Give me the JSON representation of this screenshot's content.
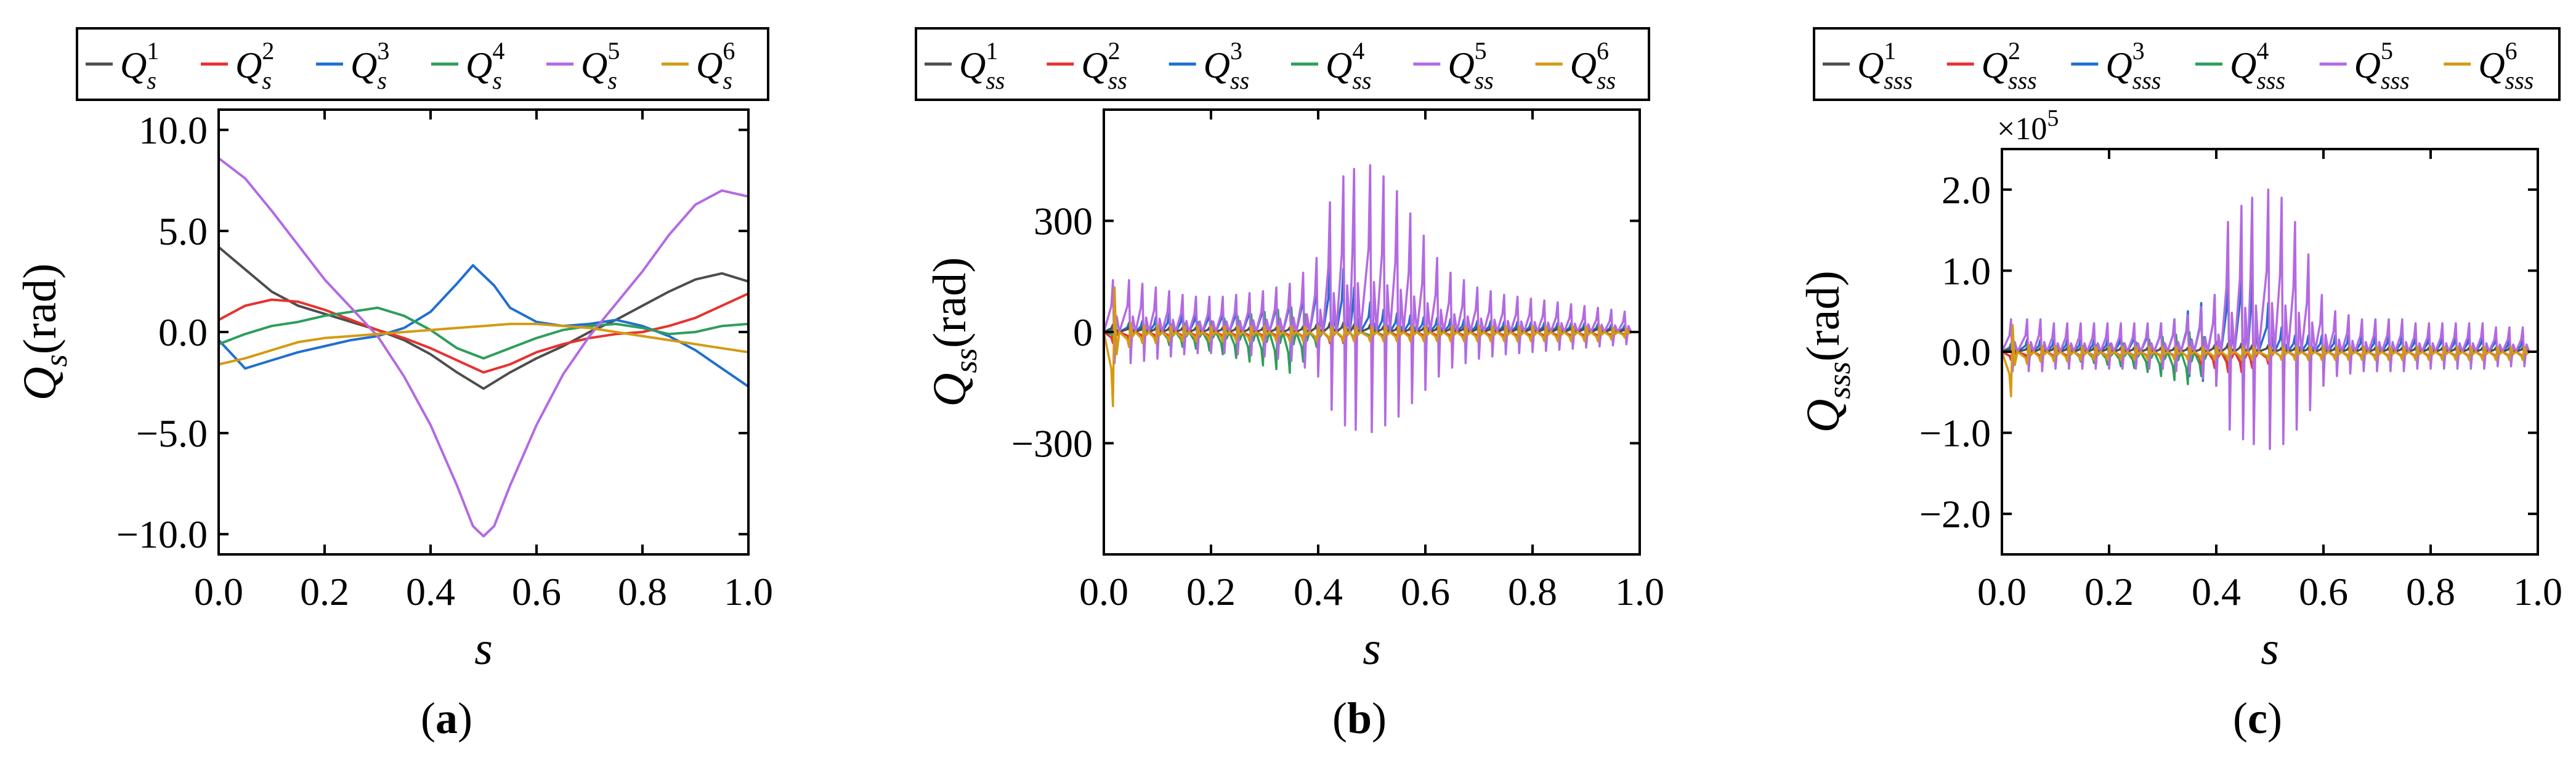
{
  "figure": {
    "series_colors": [
      "#4d4d4d",
      "#e8312f",
      "#1f6fd1",
      "#2e9e5b",
      "#b36ae2",
      "#d49a12"
    ]
  },
  "chart_data": [
    {
      "type": "line",
      "panel_label": "(a)",
      "panel_letter": "a",
      "xlabel": "s",
      "ylabel_main": "Q",
      "ylabel_sub": "s",
      "ylabel_unit": "(rad)",
      "xlim": [
        0.0,
        1.0
      ],
      "ylim": [
        -11.0,
        11.0
      ],
      "xticks": [
        0.0,
        0.2,
        0.4,
        0.6,
        0.8,
        1.0
      ],
      "xtick_labels": [
        "0.0",
        "0.2",
        "0.4",
        "0.6",
        "0.8",
        "1.0"
      ],
      "yticks": [
        -10.0,
        -5.0,
        0.0,
        5.0,
        10.0
      ],
      "ytick_labels": [
        "−10.0",
        "−5.0",
        "0.0",
        "5.0",
        "10.0"
      ],
      "legend": [
        {
          "base": "Q",
          "sub": "s",
          "sup": "1"
        },
        {
          "base": "Q",
          "sub": "s",
          "sup": "2"
        },
        {
          "base": "Q",
          "sub": "s",
          "sup": "3"
        },
        {
          "base": "Q",
          "sub": "s",
          "sup": "4"
        },
        {
          "base": "Q",
          "sub": "s",
          "sup": "5"
        },
        {
          "base": "Q",
          "sub": "s",
          "sup": "6"
        }
      ],
      "legend_position": "top",
      "series": [
        {
          "name": "Q_s^1",
          "x": [
            0,
            0.05,
            0.1,
            0.15,
            0.2,
            0.25,
            0.3,
            0.35,
            0.4,
            0.45,
            0.5,
            0.55,
            0.6,
            0.65,
            0.7,
            0.75,
            0.8,
            0.85,
            0.9,
            0.95,
            1.0
          ],
          "y": [
            4.2,
            3.1,
            2.0,
            1.3,
            0.9,
            0.5,
            0.1,
            -0.4,
            -1.1,
            -2.0,
            -2.8,
            -2.0,
            -1.3,
            -0.7,
            0.0,
            0.6,
            1.3,
            2.0,
            2.6,
            2.9,
            2.5
          ]
        },
        {
          "name": "Q_s^2",
          "x": [
            0,
            0.05,
            0.1,
            0.15,
            0.2,
            0.25,
            0.3,
            0.35,
            0.4,
            0.45,
            0.5,
            0.55,
            0.6,
            0.65,
            0.7,
            0.75,
            0.8,
            0.85,
            0.9,
            0.95,
            1.0
          ],
          "y": [
            0.6,
            1.3,
            1.6,
            1.5,
            1.1,
            0.6,
            0.1,
            -0.3,
            -0.8,
            -1.4,
            -2.0,
            -1.6,
            -1.0,
            -0.6,
            -0.3,
            -0.1,
            0.0,
            0.3,
            0.7,
            1.3,
            1.9
          ]
        },
        {
          "name": "Q_s^3",
          "x": [
            0,
            0.05,
            0.1,
            0.15,
            0.2,
            0.25,
            0.3,
            0.35,
            0.4,
            0.45,
            0.48,
            0.52,
            0.55,
            0.6,
            0.65,
            0.7,
            0.75,
            0.8,
            0.85,
            0.9,
            0.95,
            1.0
          ],
          "y": [
            -0.4,
            -1.8,
            -1.4,
            -1.0,
            -0.7,
            -0.4,
            -0.2,
            0.2,
            1.0,
            2.4,
            3.3,
            2.3,
            1.2,
            0.5,
            0.3,
            0.4,
            0.6,
            0.3,
            -0.2,
            -0.9,
            -1.8,
            -2.7
          ]
        },
        {
          "name": "Q_s^4",
          "x": [
            0,
            0.05,
            0.1,
            0.15,
            0.2,
            0.25,
            0.3,
            0.35,
            0.4,
            0.45,
            0.5,
            0.55,
            0.6,
            0.65,
            0.7,
            0.75,
            0.8,
            0.85,
            0.9,
            0.95,
            1.0
          ],
          "y": [
            -0.6,
            -0.1,
            0.3,
            0.5,
            0.8,
            1.0,
            1.2,
            0.8,
            0.1,
            -0.8,
            -1.3,
            -0.8,
            -0.3,
            0.1,
            0.3,
            0.4,
            0.2,
            -0.1,
            0.0,
            0.3,
            0.4
          ]
        },
        {
          "name": "Q_s^5",
          "x": [
            0,
            0.05,
            0.1,
            0.15,
            0.2,
            0.25,
            0.3,
            0.35,
            0.4,
            0.45,
            0.48,
            0.5,
            0.52,
            0.55,
            0.6,
            0.65,
            0.7,
            0.75,
            0.8,
            0.85,
            0.9,
            0.95,
            1.0
          ],
          "y": [
            8.6,
            7.6,
            6.0,
            4.3,
            2.6,
            1.2,
            -0.2,
            -2.2,
            -4.6,
            -7.6,
            -9.6,
            -10.1,
            -9.6,
            -7.6,
            -4.6,
            -2.1,
            -0.2,
            1.4,
            3.0,
            4.8,
            6.3,
            7.0,
            6.7
          ]
        },
        {
          "name": "Q_s^6",
          "x": [
            0,
            0.05,
            0.1,
            0.15,
            0.2,
            0.25,
            0.3,
            0.35,
            0.4,
            0.45,
            0.5,
            0.55,
            0.6,
            0.65,
            0.7,
            0.75,
            0.8,
            0.85,
            0.9,
            0.95,
            1.0
          ],
          "y": [
            -1.6,
            -1.3,
            -0.9,
            -0.5,
            -0.3,
            -0.2,
            -0.1,
            0.0,
            0.1,
            0.2,
            0.3,
            0.4,
            0.4,
            0.3,
            0.2,
            0.0,
            -0.2,
            -0.4,
            -0.6,
            -0.8,
            -1.0
          ]
        }
      ]
    },
    {
      "type": "line",
      "panel_label": "(b)",
      "panel_letter": "b",
      "xlabel": "s",
      "ylabel_main": "Q",
      "ylabel_sub": "ss",
      "ylabel_unit": "(rad)",
      "xlim": [
        0.0,
        1.0
      ],
      "ylim": [
        -600,
        600
      ],
      "xticks": [
        0.0,
        0.2,
        0.4,
        0.6,
        0.8,
        1.0
      ],
      "xtick_labels": [
        "0.0",
        "0.2",
        "0.4",
        "0.6",
        "0.8",
        "1.0"
      ],
      "yticks": [
        -300,
        0,
        300
      ],
      "ytick_labels": [
        "−300",
        "0",
        "300"
      ],
      "legend": [
        {
          "base": "Q",
          "sub": "ss",
          "sup": "1"
        },
        {
          "base": "Q",
          "sub": "ss",
          "sup": "2"
        },
        {
          "base": "Q",
          "sub": "ss",
          "sup": "3"
        },
        {
          "base": "Q",
          "sub": "ss",
          "sup": "4"
        },
        {
          "base": "Q",
          "sub": "ss",
          "sup": "5"
        },
        {
          "base": "Q",
          "sub": "ss",
          "sup": "6"
        }
      ],
      "legend_position": "top",
      "oscillation": {
        "spike_x": [
          0.02,
          0.05,
          0.075,
          0.1,
          0.125,
          0.15,
          0.175,
          0.2,
          0.225,
          0.25,
          0.275,
          0.3,
          0.325,
          0.35,
          0.375,
          0.4,
          0.425,
          0.45,
          0.47,
          0.5,
          0.525,
          0.55,
          0.575,
          0.6,
          0.625,
          0.65,
          0.675,
          0.7,
          0.725,
          0.75,
          0.775,
          0.8,
          0.825,
          0.85,
          0.875,
          0.9,
          0.925,
          0.95,
          0.975
        ],
        "amplitudes": [
          [
            20,
            15,
            12,
            12,
            12,
            12,
            12,
            12,
            12,
            12,
            12,
            12,
            12,
            12,
            15,
            20,
            25,
            25,
            20,
            20,
            15,
            12,
            12,
            12,
            12,
            12,
            12,
            12,
            12,
            12,
            12,
            12,
            12,
            12,
            12,
            12,
            12,
            10,
            8
          ],
          [
            30,
            20,
            15,
            15,
            15,
            15,
            15,
            15,
            15,
            15,
            15,
            15,
            15,
            15,
            20,
            25,
            30,
            30,
            25,
            25,
            20,
            15,
            15,
            15,
            15,
            15,
            15,
            15,
            15,
            15,
            15,
            15,
            15,
            15,
            15,
            15,
            15,
            12,
            10
          ],
          [
            10,
            25,
            30,
            40,
            50,
            55,
            60,
            65,
            70,
            75,
            80,
            90,
            100,
            110,
            130,
            160,
            180,
            170,
            120,
            80,
            60,
            50,
            45,
            40,
            38,
            35,
            33,
            30,
            30,
            28,
            28,
            26,
            25,
            25,
            24,
            24,
            22,
            20,
            18
          ],
          [
            12,
            20,
            25,
            30,
            35,
            40,
            45,
            50,
            60,
            70,
            80,
            90,
            100,
            110,
            80,
            40,
            30,
            25,
            20,
            15,
            15,
            15,
            15,
            15,
            15,
            15,
            15,
            15,
            15,
            15,
            15,
            15,
            15,
            15,
            15,
            15,
            15,
            12,
            10
          ],
          [
            140,
            140,
            130,
            120,
            110,
            100,
            95,
            95,
            95,
            100,
            105,
            110,
            120,
            130,
            160,
            200,
            350,
            420,
            440,
            450,
            420,
            380,
            320,
            260,
            200,
            160,
            140,
            120,
            110,
            100,
            95,
            90,
            85,
            80,
            75,
            70,
            65,
            60,
            55
          ],
          [
            200,
            40,
            30,
            30,
            25,
            25,
            25,
            25,
            25,
            25,
            25,
            25,
            25,
            25,
            25,
            25,
            25,
            25,
            25,
            25,
            25,
            25,
            25,
            25,
            25,
            25,
            25,
            25,
            25,
            25,
            25,
            25,
            25,
            25,
            25,
            25,
            25,
            20,
            15
          ]
        ]
      }
    },
    {
      "type": "line",
      "panel_label": "(c)",
      "panel_letter": "c",
      "xlabel": "s",
      "ylabel_main": "Q",
      "ylabel_sub": "sss",
      "ylabel_unit": "(rad)",
      "axis_offset_text": "×10",
      "axis_offset_exp": "5",
      "xlim": [
        0.0,
        1.0
      ],
      "ylim": [
        -2.5,
        2.5
      ],
      "xticks": [
        0.0,
        0.2,
        0.4,
        0.6,
        0.8,
        1.0
      ],
      "xtick_labels": [
        "0.0",
        "0.2",
        "0.4",
        "0.6",
        "0.8",
        "1.0"
      ],
      "yticks": [
        -2.0,
        -1.0,
        0.0,
        1.0,
        2.0
      ],
      "ytick_labels": [
        "−2.0",
        "−1.0",
        "0.0",
        "1.0",
        "2.0"
      ],
      "legend": [
        {
          "base": "Q",
          "sub": "sss",
          "sup": "1"
        },
        {
          "base": "Q",
          "sub": "sss",
          "sup": "2"
        },
        {
          "base": "Q",
          "sub": "sss",
          "sup": "3"
        },
        {
          "base": "Q",
          "sub": "sss",
          "sup": "4"
        },
        {
          "base": "Q",
          "sub": "sss",
          "sup": "5"
        },
        {
          "base": "Q",
          "sub": "sss",
          "sup": "6"
        }
      ],
      "legend_position": "top",
      "oscillation": {
        "spike_x": [
          0.02,
          0.05,
          0.075,
          0.1,
          0.125,
          0.15,
          0.175,
          0.2,
          0.225,
          0.25,
          0.275,
          0.3,
          0.325,
          0.35,
          0.375,
          0.4,
          0.425,
          0.45,
          0.47,
          0.5,
          0.525,
          0.55,
          0.575,
          0.6,
          0.625,
          0.65,
          0.675,
          0.7,
          0.725,
          0.75,
          0.775,
          0.8,
          0.825,
          0.85,
          0.875,
          0.9,
          0.925,
          0.95,
          0.975
        ],
        "amplitudes": [
          [
            0.05,
            0.05,
            0.05,
            0.05,
            0.05,
            0.05,
            0.05,
            0.05,
            0.05,
            0.05,
            0.05,
            0.05,
            0.05,
            0.05,
            0.05,
            0.08,
            0.1,
            0.1,
            0.08,
            0.08,
            0.05,
            0.05,
            0.05,
            0.05,
            0.05,
            0.05,
            0.05,
            0.05,
            0.05,
            0.05,
            0.05,
            0.05,
            0.05,
            0.05,
            0.05,
            0.05,
            0.05,
            0.05,
            0.05
          ],
          [
            0.1,
            0.08,
            0.08,
            0.08,
            0.08,
            0.08,
            0.08,
            0.08,
            0.08,
            0.08,
            0.08,
            0.08,
            0.08,
            0.1,
            0.15,
            0.2,
            0.25,
            0.25,
            0.2,
            0.15,
            0.1,
            0.08,
            0.08,
            0.08,
            0.08,
            0.08,
            0.08,
            0.08,
            0.08,
            0.08,
            0.08,
            0.08,
            0.08,
            0.08,
            0.08,
            0.08,
            0.08,
            0.08,
            0.08
          ],
          [
            0.1,
            0.15,
            0.15,
            0.15,
            0.15,
            0.15,
            0.15,
            0.15,
            0.2,
            0.25,
            0.3,
            0.35,
            0.4,
            0.5,
            0.6,
            0.7,
            1.0,
            1.2,
            1.0,
            0.6,
            0.3,
            0.2,
            0.2,
            0.2,
            0.2,
            0.2,
            0.2,
            0.2,
            0.2,
            0.2,
            0.2,
            0.2,
            0.2,
            0.2,
            0.2,
            0.2,
            0.2,
            0.15,
            0.15
          ],
          [
            0.1,
            0.1,
            0.1,
            0.1,
            0.1,
            0.12,
            0.14,
            0.16,
            0.18,
            0.2,
            0.25,
            0.3,
            0.35,
            0.4,
            0.3,
            0.2,
            0.15,
            0.12,
            0.1,
            0.1,
            0.1,
            0.1,
            0.1,
            0.1,
            0.1,
            0.1,
            0.1,
            0.1,
            0.1,
            0.1,
            0.1,
            0.1,
            0.1,
            0.1,
            0.1,
            0.1,
            0.1,
            0.1,
            0.1
          ],
          [
            0.4,
            0.4,
            0.4,
            0.35,
            0.35,
            0.35,
            0.35,
            0.35,
            0.35,
            0.35,
            0.35,
            0.35,
            0.4,
            0.45,
            0.55,
            0.7,
            1.6,
            1.8,
            1.9,
            2.0,
            1.9,
            1.6,
            1.2,
            0.7,
            0.5,
            0.45,
            0.4,
            0.4,
            0.4,
            0.4,
            0.35,
            0.35,
            0.35,
            0.35,
            0.35,
            0.35,
            0.3,
            0.3,
            0.3
          ],
          [
            0.55,
            0.15,
            0.12,
            0.12,
            0.12,
            0.1,
            0.1,
            0.1,
            0.1,
            0.1,
            0.1,
            0.1,
            0.1,
            0.1,
            0.1,
            0.1,
            0.1,
            0.1,
            0.1,
            0.1,
            0.1,
            0.1,
            0.1,
            0.1,
            0.1,
            0.1,
            0.1,
            0.1,
            0.1,
            0.1,
            0.1,
            0.1,
            0.1,
            0.1,
            0.1,
            0.1,
            0.1,
            0.1,
            0.1
          ]
        ]
      }
    }
  ]
}
